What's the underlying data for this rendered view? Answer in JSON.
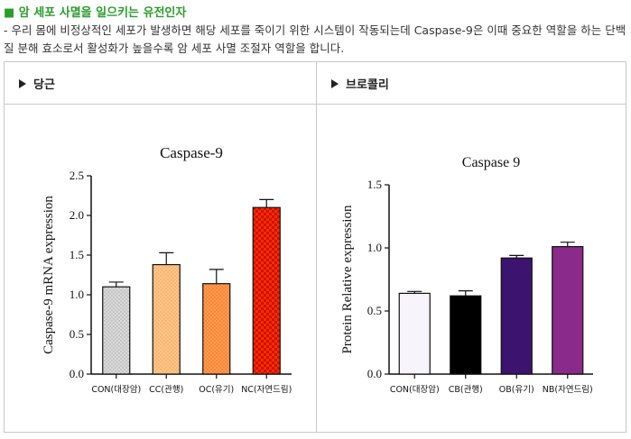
{
  "heading": "■ 암 세포 사멸을 일으키는 유전인자",
  "description": "- 우리 몸에 비정상적인 세포가 발생하면 해당 세포를 죽이기 위한 시스템이 작동되는데 Caspase-9은 이때 중요한 역할을 하는 단백질 분해 효소로서 활성화가 높을수록 암 세포 사멸 조절자 역할을 합니다.",
  "panels": [
    {
      "label": "당근"
    },
    {
      "label": "브로콜리"
    }
  ],
  "chart_data": [
    {
      "type": "bar",
      "title": "Caspase-9",
      "xlabel": "",
      "ylabel": "Caspase-9 mRNA expression",
      "categories": [
        "CON(대장암)",
        "CC(관행)",
        "OC(유기)",
        "NC(자연드림)"
      ],
      "values": [
        1.1,
        1.38,
        1.14,
        2.1
      ],
      "errors": [
        0.06,
        0.15,
        0.18,
        0.1
      ],
      "colors": [
        "#d9d9d9",
        "#ffc07a",
        "#ff8c3a",
        "#ff2a00"
      ],
      "ylim": [
        0,
        2.5
      ],
      "yticks": [
        "0.0",
        "0.5",
        "1.0",
        "1.5",
        "2.0",
        "2.5"
      ]
    },
    {
      "type": "bar",
      "title": "Caspase 9",
      "xlabel": "",
      "ylabel": "Protein Relative expression",
      "categories": [
        "CON(대장암)",
        "CB(관행)",
        "OB(유기)",
        "NB(자연드림)"
      ],
      "values": [
        0.64,
        0.62,
        0.92,
        1.01
      ],
      "errors": [
        0.015,
        0.04,
        0.02,
        0.035
      ],
      "colors": [
        "#f7f4fb",
        "#000000",
        "#3c1470",
        "#8a2a8a"
      ],
      "ylim": [
        0,
        1.5
      ],
      "yticks": [
        "0.0",
        "0.5",
        "1.0",
        "1.5"
      ]
    }
  ]
}
